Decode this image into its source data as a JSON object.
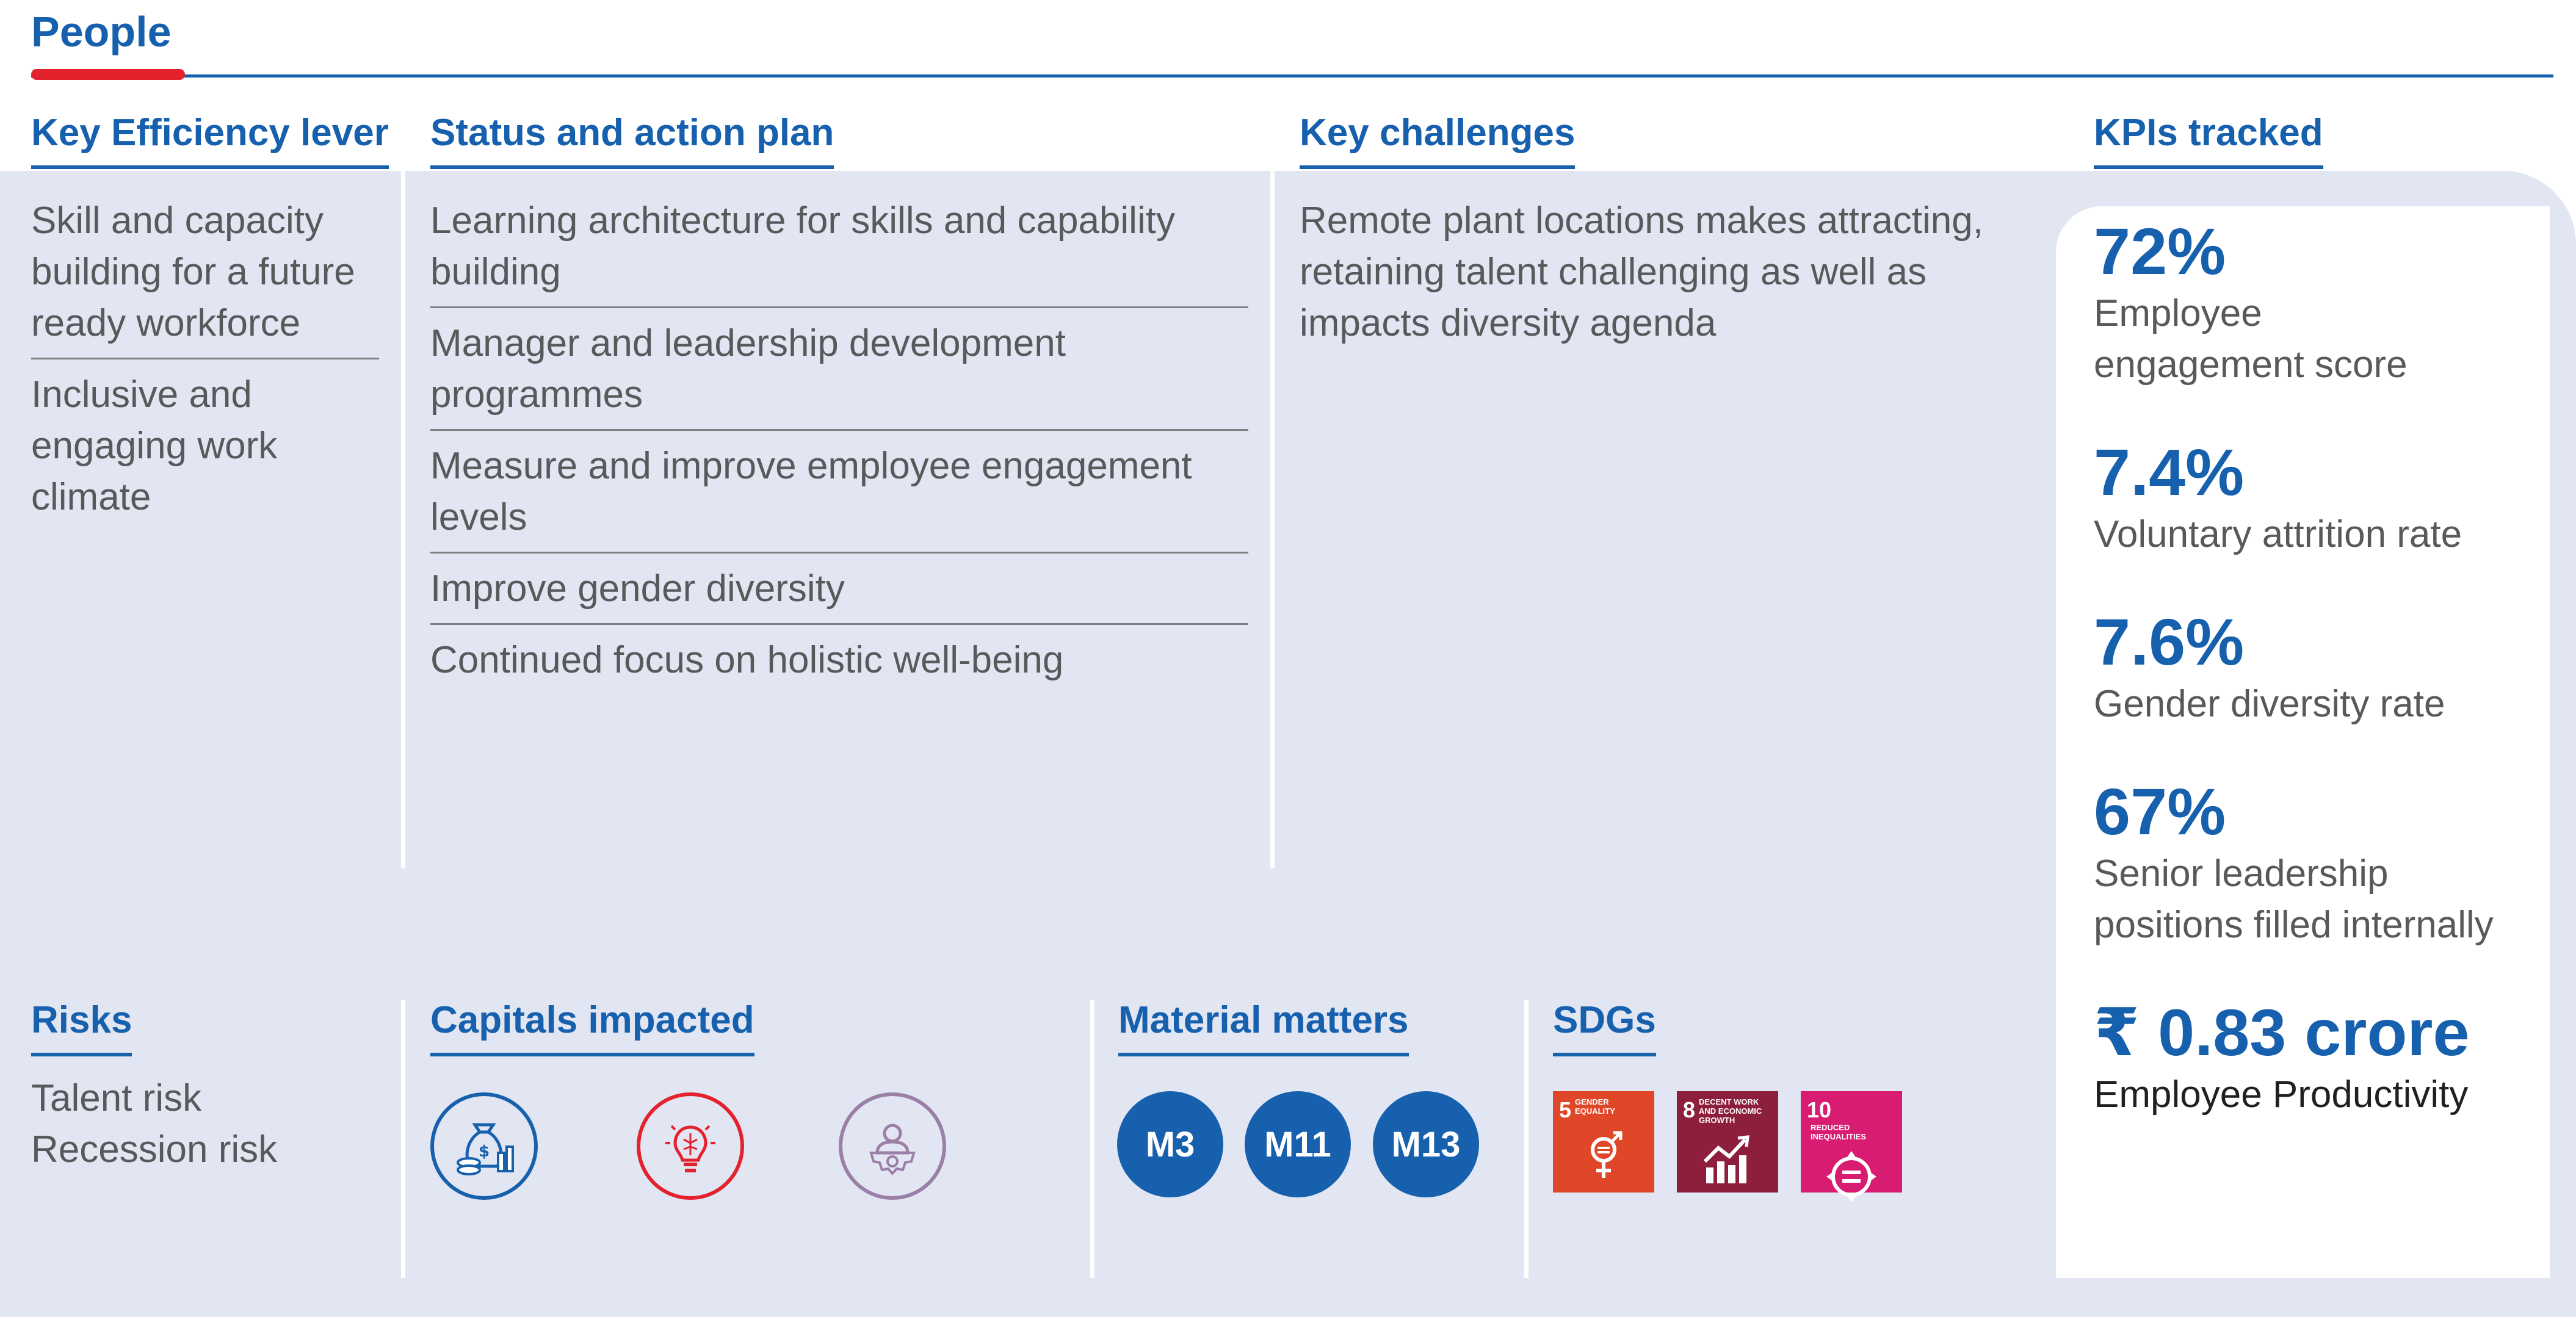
{
  "title": "People",
  "headers": {
    "lever": "Key Efficiency lever",
    "status": "Status and action plan",
    "challenges": "Key challenges",
    "kpis": "KPIs tracked",
    "risks": "Risks",
    "capitals": "Capitals impacted",
    "material": "Material matters",
    "sdgs": "SDGs"
  },
  "levers": [
    "Skill and capacity building for a future ready workforce",
    "Inclusive and engaging work climate"
  ],
  "status_items": [
    "Learning architecture for skills and capability building",
    "Manager and leadership development programmes",
    "Measure and improve employee engagement levels",
    "Improve gender diversity",
    "Continued focus on holistic well-being"
  ],
  "challenges_text": "Remote plant locations makes attracting, retaining talent challenging as well as impacts diversity agenda",
  "kpis": [
    {
      "value": "72%",
      "label": "Employee engagement score"
    },
    {
      "value": "7.4%",
      "label": "Voluntary attrition rate"
    },
    {
      "value": "7.6%",
      "label": "Gender diversity rate"
    },
    {
      "value": "67%",
      "label": "Senior leadership positions filled internally"
    },
    {
      "value": "₹ 0.83 crore",
      "label": "Employee Productivity"
    }
  ],
  "risks": [
    "Talent risk",
    "Recession risk"
  ],
  "capitals": [
    {
      "icon": "financial-capital-icon",
      "color": "#1660ad"
    },
    {
      "icon": "intellectual-capital-icon",
      "color": "#e3222e"
    },
    {
      "icon": "human-capital-icon",
      "color": "#9a7fa6"
    }
  ],
  "material_matters": [
    "M3",
    "M11",
    "M13"
  ],
  "sdgs": [
    {
      "number": "5",
      "label": "GENDER EQUALITY",
      "color": "#e04728",
      "icon": "gender-equality-icon"
    },
    {
      "number": "8",
      "label": "DECENT WORK AND ECONOMIC GROWTH",
      "color": "#8e1f3c",
      "icon": "economic-growth-icon"
    },
    {
      "number": "10",
      "label": "REDUCED INEQUALITIES",
      "color": "#d81c72",
      "icon": "reduced-inequalities-icon"
    }
  ]
}
